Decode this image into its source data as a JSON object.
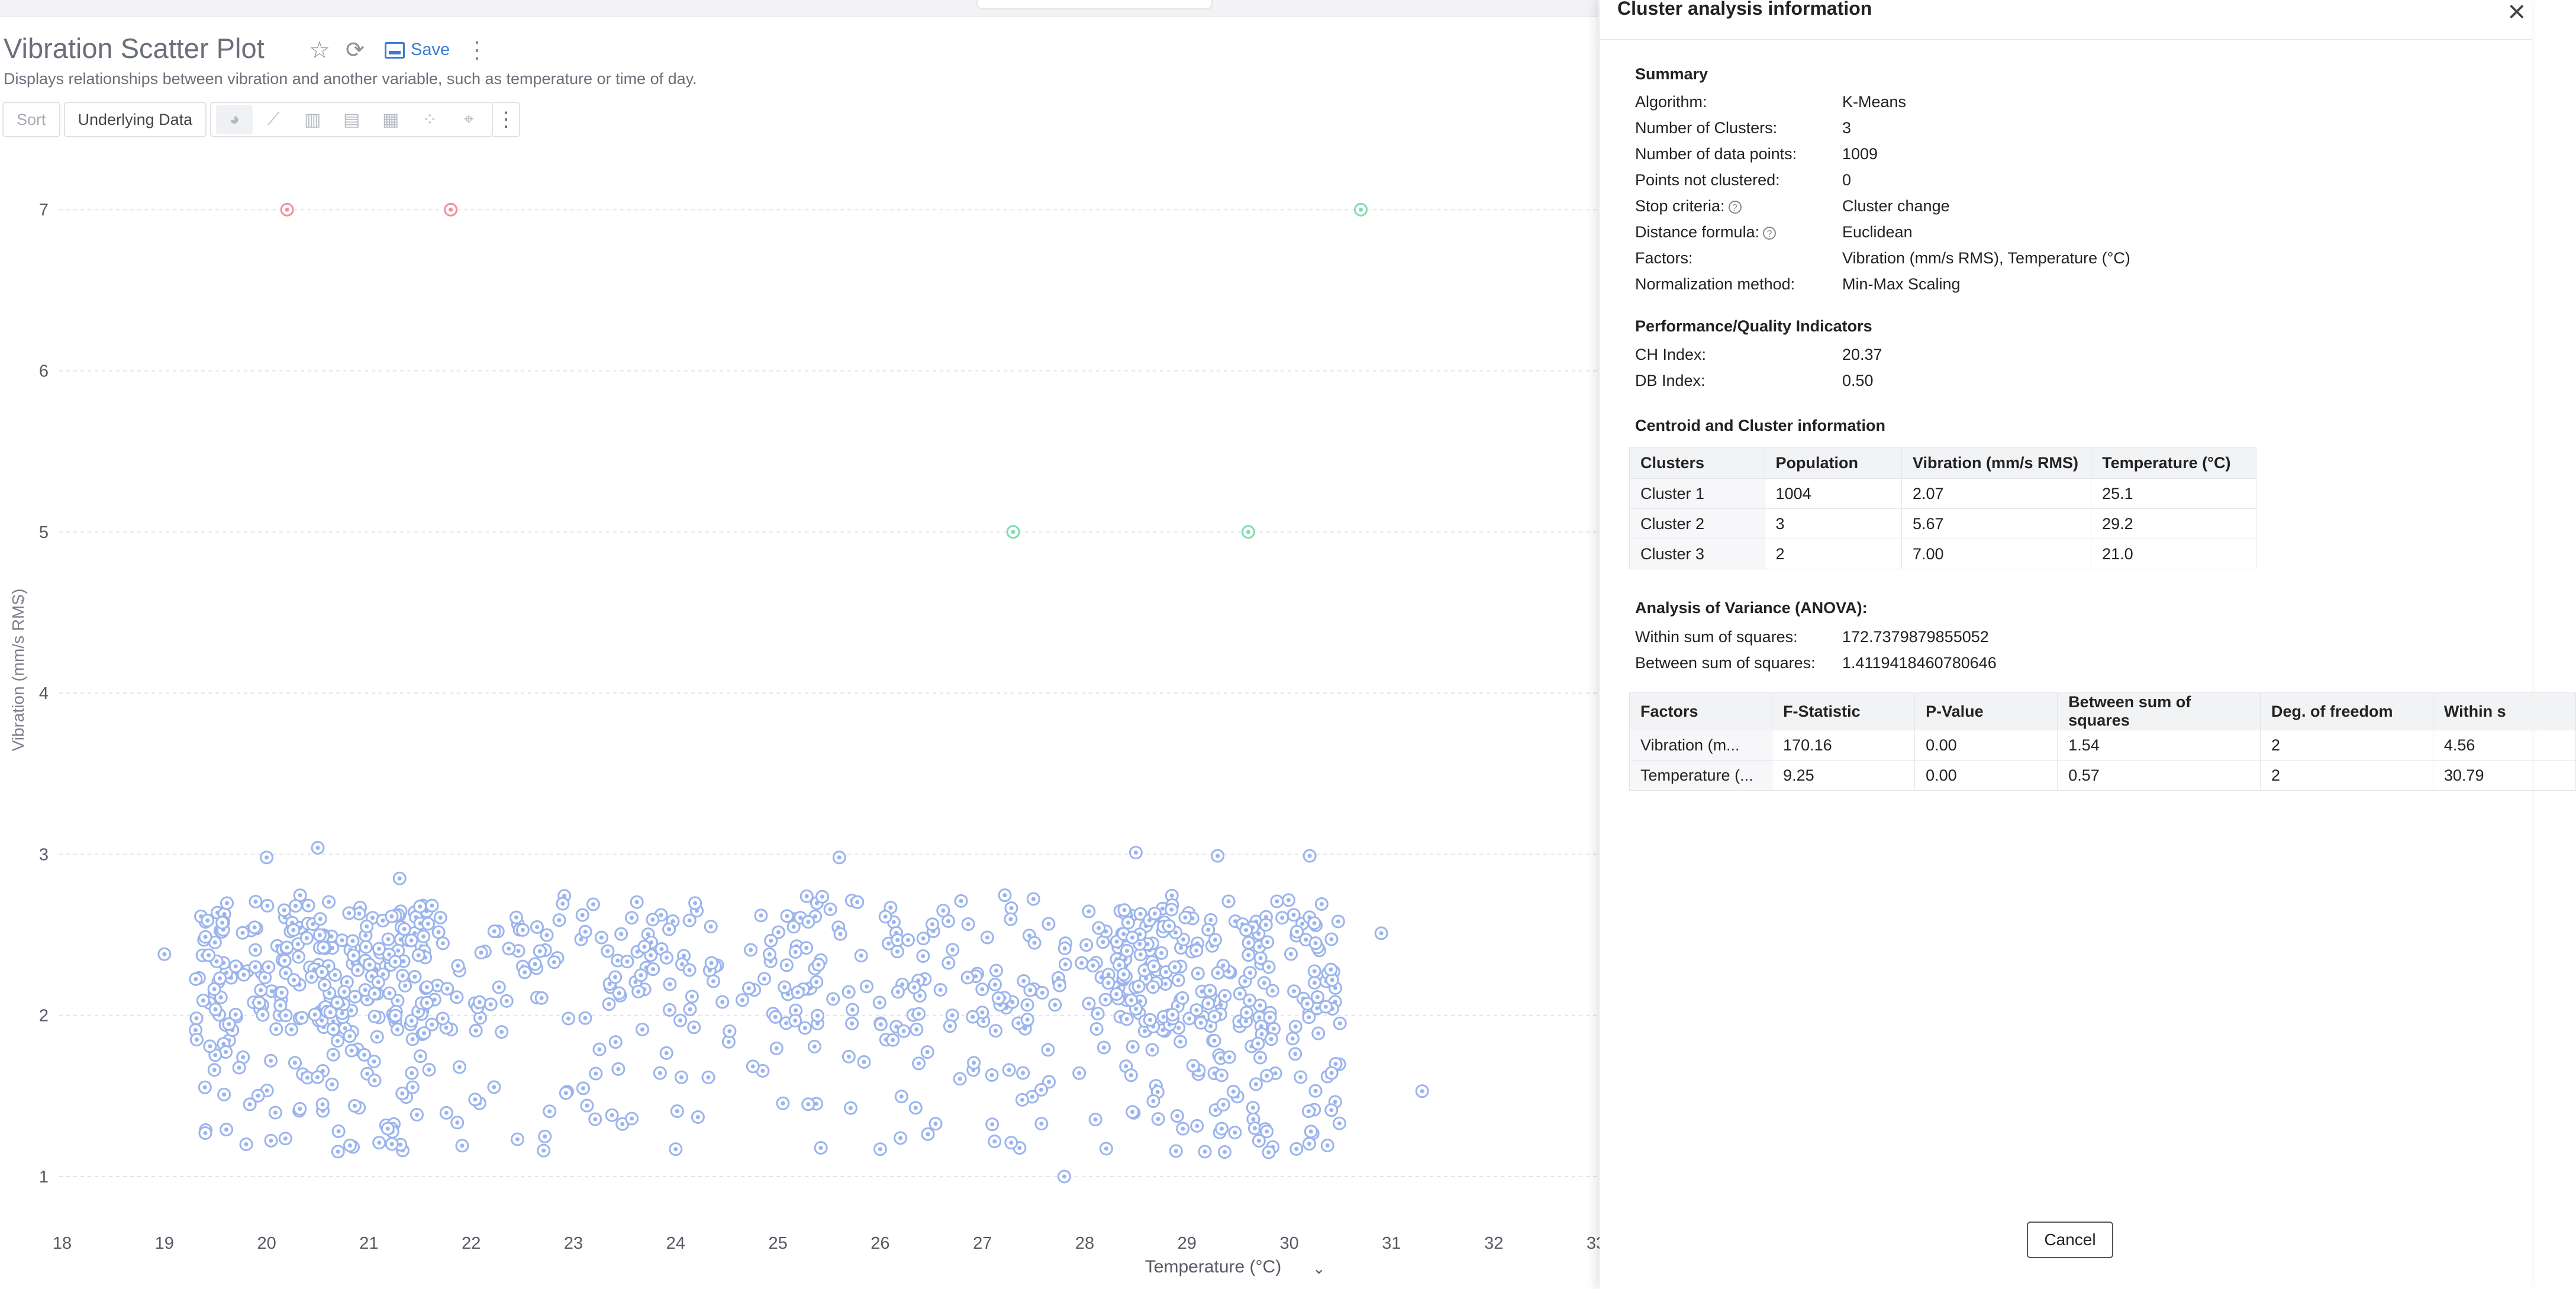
{
  "report": {
    "title": "Vibration Scatter Plot",
    "subtitle": "Displays relationships between vibration and another variable, such as temperature or time of day.",
    "save_label": "Save",
    "sort_label": "Sort",
    "underlying_label": "Underlying Data",
    "icons": [
      "star-icon",
      "refresh-icon",
      "save-icon",
      "more-vertical-icon",
      "pie-chart-icon",
      "line-chart-icon",
      "bar-chart-icon",
      "stacked-bar-icon",
      "column-chart-icon",
      "scatter-chart-icon",
      "map-chart-icon"
    ]
  },
  "colors": {
    "cluster1": "#9bb4ee",
    "cluster2": "#7fdcaf",
    "cluster3": "#f08f9d",
    "accent": "#3a7bd5"
  },
  "chart_data": {
    "type": "scatter",
    "xlabel": "Temperature (°C)",
    "ylabel": "Vibration (mm/s RMS)",
    "xlim": [
      18,
      33
    ],
    "ylim": [
      1,
      7
    ],
    "x_ticks": [
      "18",
      "19",
      "20",
      "21",
      "22",
      "23",
      "24",
      "25",
      "26",
      "27",
      "28",
      "29",
      "30",
      "31",
      "32",
      "33"
    ],
    "y_ticks": [
      "1",
      "2",
      "3",
      "4",
      "5",
      "6",
      "7"
    ],
    "grid": true,
    "series": [
      {
        "cluster": 1,
        "color": "#9bb4ee",
        "x_range": [
          19.0,
          31.3
        ],
        "y_range": [
          1.0,
          3.05
        ],
        "count": 1004,
        "sample_points": [
          [
            19.0,
            2.38
          ],
          [
            19.4,
            1.27
          ],
          [
            19.8,
            1.2
          ],
          [
            20.0,
            2.98
          ],
          [
            20.5,
            3.04
          ],
          [
            21.3,
            2.85
          ],
          [
            25.6,
            2.98
          ],
          [
            27.8,
            1.0
          ],
          [
            28.5,
            3.01
          ],
          [
            29.3,
            2.99
          ],
          [
            30.2,
            2.99
          ],
          [
            31.3,
            1.53
          ],
          [
            30.9,
            2.51
          ],
          [
            29.8,
            2.3
          ],
          [
            24.0,
            1.17
          ],
          [
            26.0,
            1.17
          ]
        ]
      },
      {
        "cluster": 2,
        "color": "#7fdcaf",
        "points": [
          [
            27.3,
            5.0
          ],
          [
            29.6,
            5.0
          ],
          [
            30.7,
            7.0
          ]
        ]
      },
      {
        "cluster": 3,
        "color": "#f08f9d",
        "points": [
          [
            20.2,
            7.0
          ],
          [
            21.8,
            7.0
          ]
        ]
      }
    ]
  },
  "panel": {
    "title": "Cluster analysis information",
    "summary_heading": "Summary",
    "summary": [
      {
        "label": "Algorithm:",
        "value": "K-Means"
      },
      {
        "label": "Number of Clusters:",
        "value": "3"
      },
      {
        "label": "Number of data points:",
        "value": "1009"
      },
      {
        "label": "Points not clustered:",
        "value": "0"
      },
      {
        "label": "Stop criteria:",
        "value": "Cluster change"
      },
      {
        "label": "Distance formula:",
        "value": "Euclidean"
      },
      {
        "label": "Factors:",
        "value": "Vibration (mm/s RMS), Temperature (°C)"
      },
      {
        "label": "Normalization method:",
        "value": "Min-Max Scaling"
      }
    ],
    "quality_heading": "Performance/Quality Indicators",
    "quality": [
      {
        "label": "CH Index:",
        "value": "20.37"
      },
      {
        "label": "DB Index:",
        "value": "0.50"
      }
    ],
    "centroid_heading": "Centroid and Cluster information",
    "centroid_columns": [
      "Clusters",
      "Population",
      "Vibration (mm/s RMS)",
      "Temperature (°C)"
    ],
    "centroid_rows": [
      [
        "Cluster 1",
        "1004",
        "2.07",
        "25.1"
      ],
      [
        "Cluster 2",
        "3",
        "5.67",
        "29.2"
      ],
      [
        "Cluster 3",
        "2",
        "7.00",
        "21.0"
      ]
    ],
    "anova_heading": "Analysis of Variance (ANOVA):",
    "anova": [
      {
        "label": "Within sum of squares:",
        "value": "172.7379879855052"
      },
      {
        "label": "Between sum of squares:",
        "value": "1.4119418460780646"
      }
    ],
    "anova_columns": [
      "Factors",
      "F-Statistic",
      "P-Value",
      "Between sum of squares",
      "Deg. of freedom",
      "Within s"
    ],
    "anova_rows": [
      [
        "Vibration (m...",
        "170.16",
        "0.00",
        "1.54",
        "2",
        "4.56"
      ],
      [
        "Temperature (...",
        "9.25",
        "0.00",
        "0.57",
        "2",
        "30.79"
      ]
    ],
    "cancel_label": "Cancel"
  }
}
